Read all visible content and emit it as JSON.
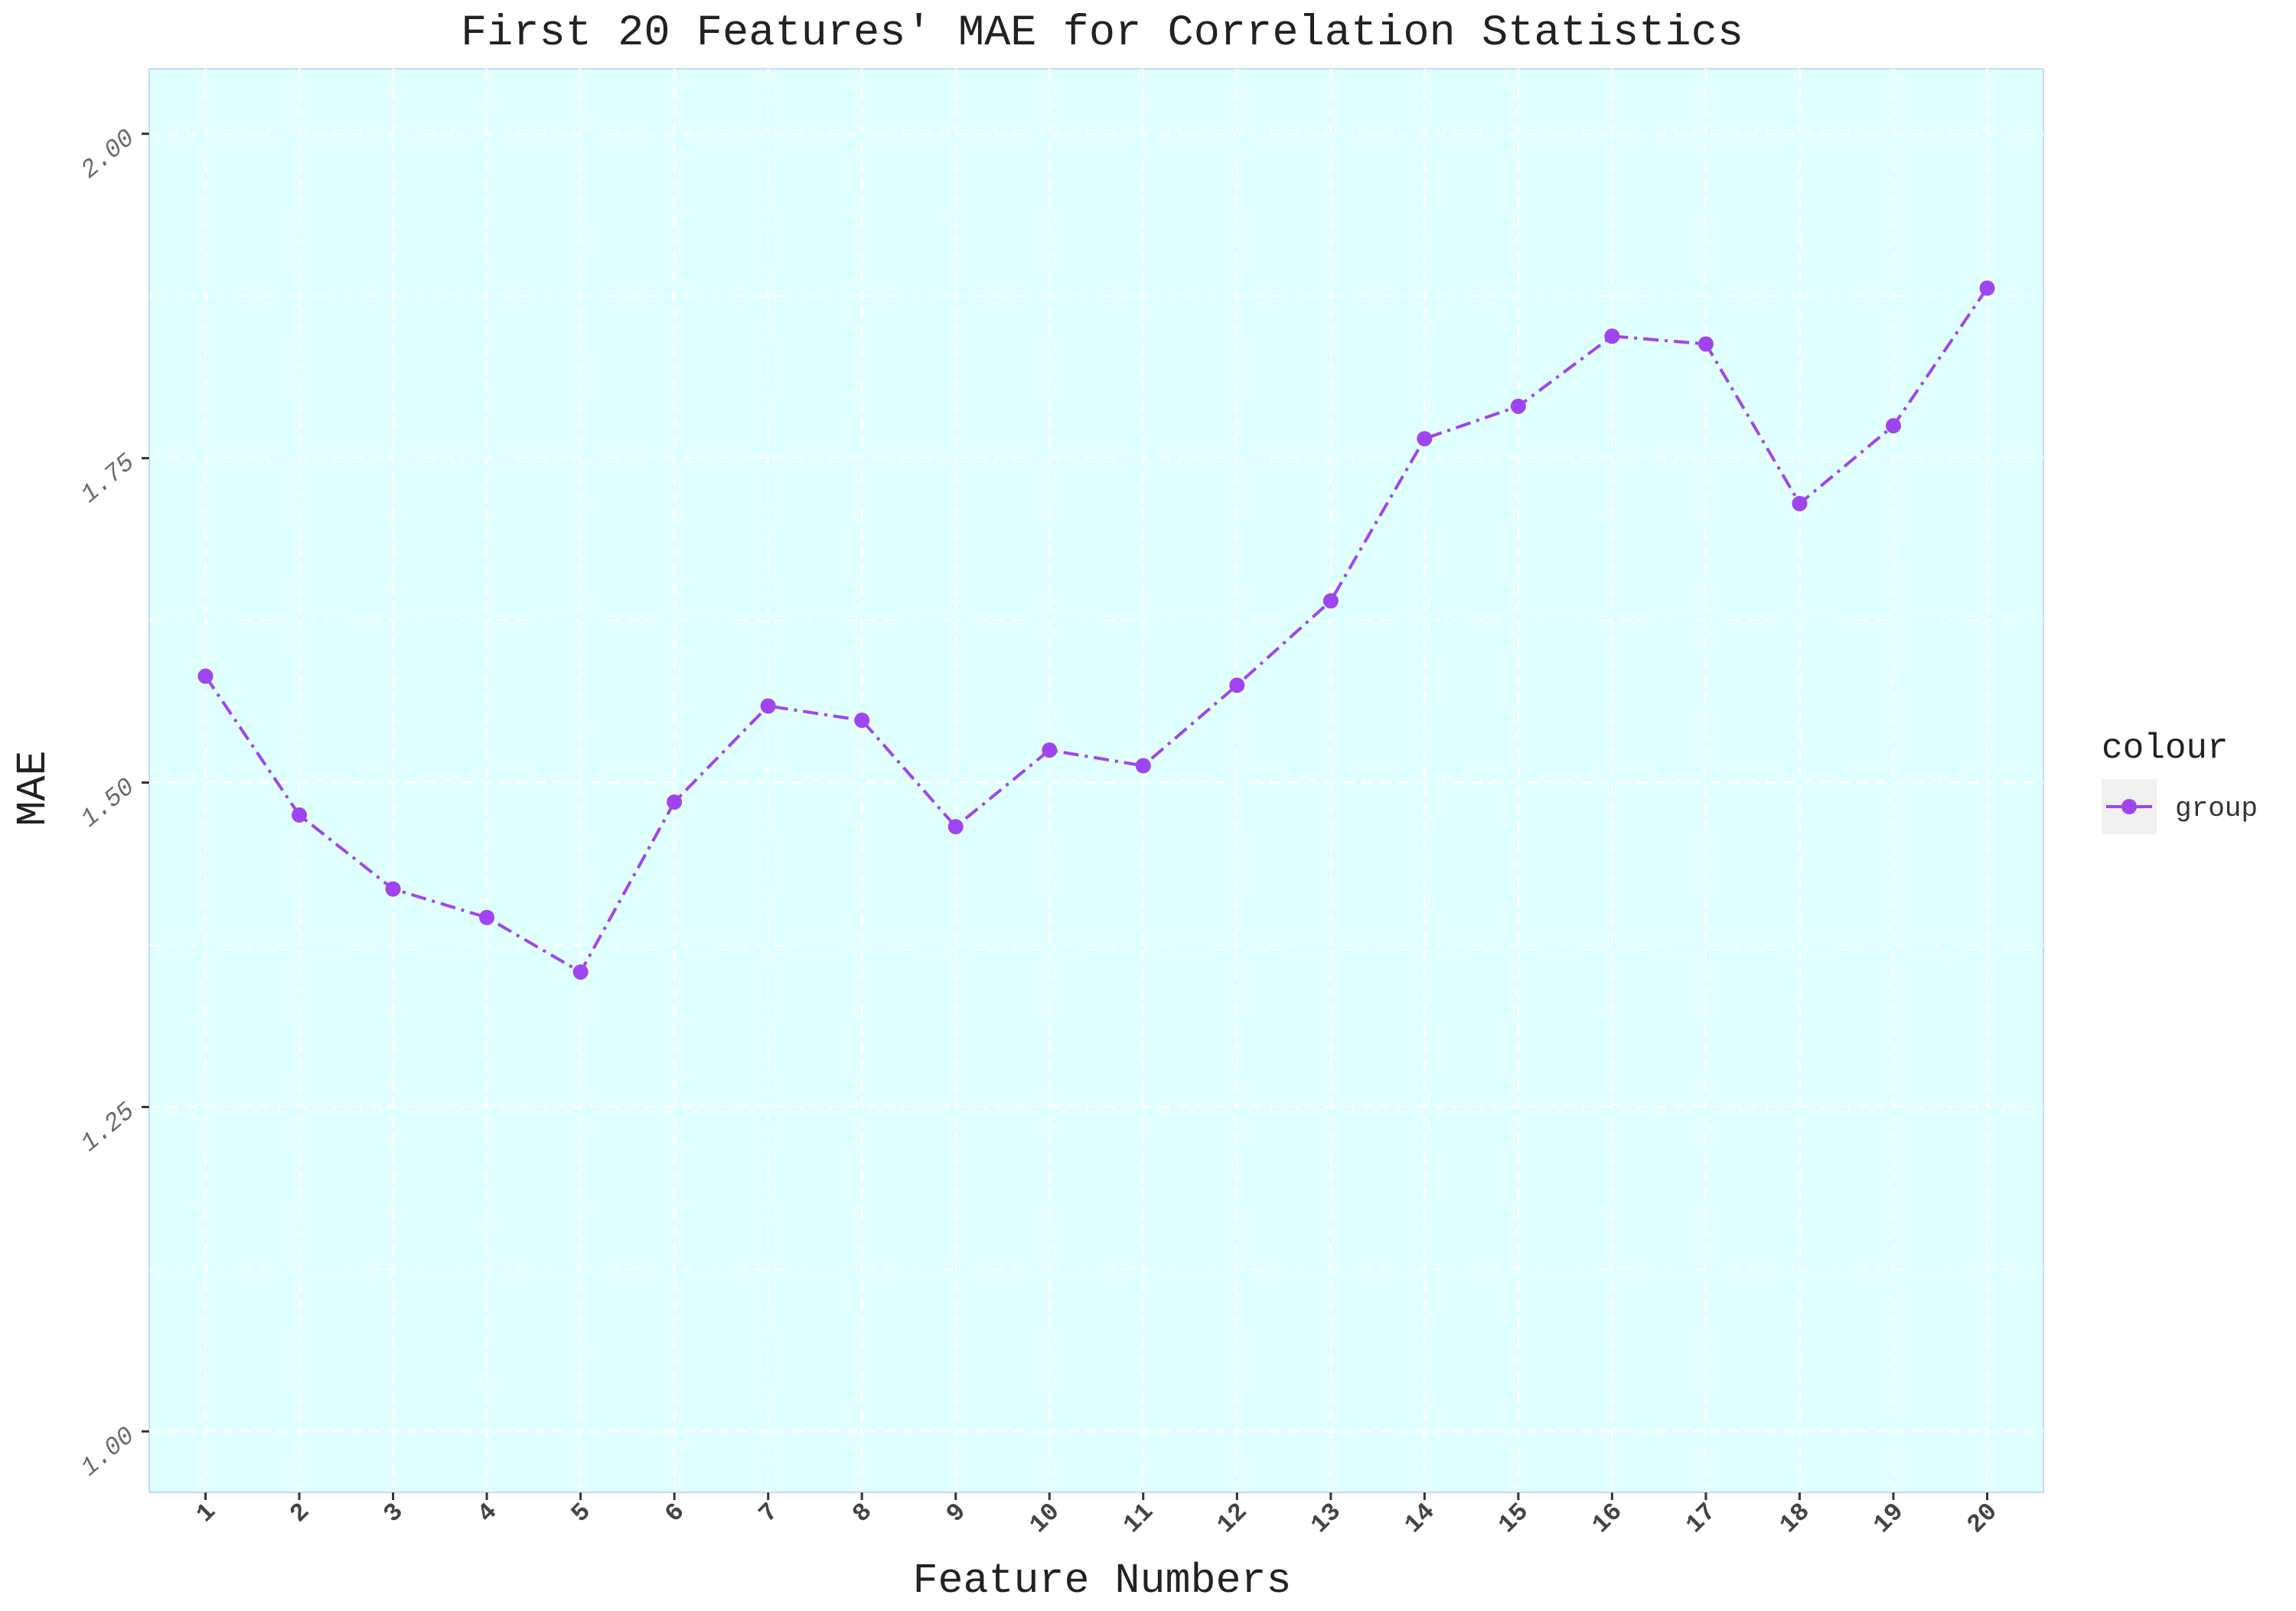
{
  "chart_data": {
    "type": "line",
    "title": "First 20 Features' MAE for Correlation Statistics",
    "xlabel": "Feature Numbers",
    "ylabel": "MAE",
    "x": [
      1,
      2,
      3,
      4,
      5,
      6,
      7,
      8,
      9,
      10,
      11,
      12,
      13,
      14,
      15,
      16,
      17,
      18,
      19,
      20
    ],
    "x_tick_labels": [
      "1",
      "2",
      "3",
      "4",
      "5",
      "6",
      "7",
      "8",
      "9",
      "10",
      "11",
      "12",
      "13",
      "14",
      "15",
      "16",
      "17",
      "18",
      "19",
      "20"
    ],
    "y_ticks": [
      1.0,
      1.25,
      1.5,
      1.75,
      2.0
    ],
    "y_tick_labels": [
      "1.00",
      "1.25",
      "1.50",
      "1.75",
      "2.00"
    ],
    "y_minor_ticks": [
      1.125,
      1.375,
      1.625,
      1.875
    ],
    "ylim": [
      0.953,
      2.05
    ],
    "xlim": [
      0.4,
      20.6
    ],
    "series": [
      {
        "name": "group",
        "values": [
          1.582,
          1.475,
          1.418,
          1.396,
          1.354,
          1.485,
          1.559,
          1.548,
          1.466,
          1.525,
          1.513,
          1.575,
          1.64,
          1.765,
          1.79,
          1.844,
          1.838,
          1.715,
          1.775,
          1.881
        ]
      }
    ],
    "legend": {
      "title": "colour",
      "position": "right"
    },
    "grid": true,
    "line_style": "dashdot",
    "colors": {
      "series": "#a044f0",
      "panel_background": "#e0ffff",
      "panel_border": "#c8d8ff",
      "grid": "#ffffff",
      "legend_key_background": "#f0f0f0"
    }
  }
}
